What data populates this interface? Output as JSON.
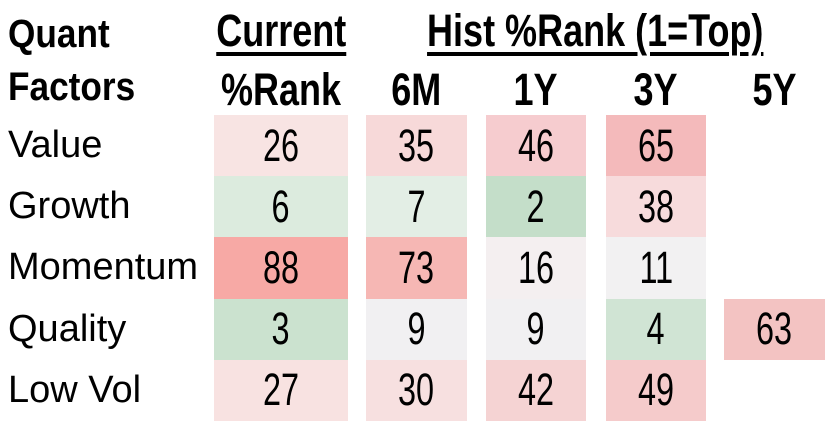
{
  "chart_data": {
    "type": "heatmap",
    "title": "Quant Factors",
    "column_groups": [
      "Current",
      "Hist %Rank (1=Top)"
    ],
    "columns": [
      "%Rank",
      "6M",
      "1Y",
      "3Y",
      "5Y"
    ],
    "row_categories": [
      "Value",
      "Growth",
      "Momentum",
      "Quality",
      "Low Vol"
    ],
    "values": [
      [
        26,
        35,
        46,
        65,
        null
      ],
      [
        6,
        7,
        2,
        38,
        null
      ],
      [
        88,
        73,
        16,
        11,
        null
      ],
      [
        3,
        9,
        9,
        4,
        63
      ],
      [
        27,
        30,
        42,
        49,
        null
      ]
    ],
    "scale_note": "1=Top; low ranks shaded green, high ranks shaded red, ~white near 10-15",
    "color_scale": {
      "low_green": "#c4dec9",
      "mid_white": "#f2f1f2",
      "high_red": "#f7a9a5"
    },
    "legend_position": "none",
    "grid": false
  },
  "title": {
    "line1": "Quant",
    "line2": "Factors"
  },
  "header": {
    "group_current": "Current",
    "group_hist": "Hist %Rank (1=Top)",
    "col_rank": "%Rank",
    "col_6m": "6M",
    "col_1y": "1Y",
    "col_3y": "3Y",
    "col_5y": "5Y"
  },
  "rows": [
    {
      "label": "Value",
      "c1": {
        "v": "26",
        "bg": "#f8e4e3"
      },
      "c2": {
        "v": "35",
        "bg": "#f7d9d9"
      },
      "c3": {
        "v": "46",
        "bg": "#f6cccf"
      },
      "c4": {
        "v": "65",
        "bg": "#f4babb"
      },
      "c5": {
        "v": "",
        "bg": ""
      }
    },
    {
      "label": "Growth",
      "c1": {
        "v": "6",
        "bg": "#dcebde"
      },
      "c2": {
        "v": "7",
        "bg": "#e3eee5"
      },
      "c3": {
        "v": "2",
        "bg": "#c4dec9"
      },
      "c4": {
        "v": "38",
        "bg": "#f7dbdc"
      },
      "c5": {
        "v": "",
        "bg": ""
      }
    },
    {
      "label": "Momentum",
      "c1": {
        "v": "88",
        "bg": "#f7a9a5"
      },
      "c2": {
        "v": "73",
        "bg": "#f6b7b4"
      },
      "c3": {
        "v": "16",
        "bg": "#f4eff0"
      },
      "c4": {
        "v": "11",
        "bg": "#f2f1f2"
      },
      "c5": {
        "v": "",
        "bg": ""
      }
    },
    {
      "label": "Quality",
      "c1": {
        "v": "3",
        "bg": "#cbe2cf"
      },
      "c2": {
        "v": "9",
        "bg": "#f1f0f2"
      },
      "c3": {
        "v": "9",
        "bg": "#f1f0f2"
      },
      "c4": {
        "v": "4",
        "bg": "#d0e4d4"
      },
      "c5": {
        "v": "63",
        "bg": "#f3c3c2"
      }
    },
    {
      "label": "Low Vol",
      "c1": {
        "v": "27",
        "bg": "#f8e2e1"
      },
      "c2": {
        "v": "30",
        "bg": "#f7e0e0"
      },
      "c3": {
        "v": "42",
        "bg": "#f5d3d3"
      },
      "c4": {
        "v": "49",
        "bg": "#f5cbcb"
      },
      "c5": {
        "v": "",
        "bg": ""
      }
    }
  ]
}
